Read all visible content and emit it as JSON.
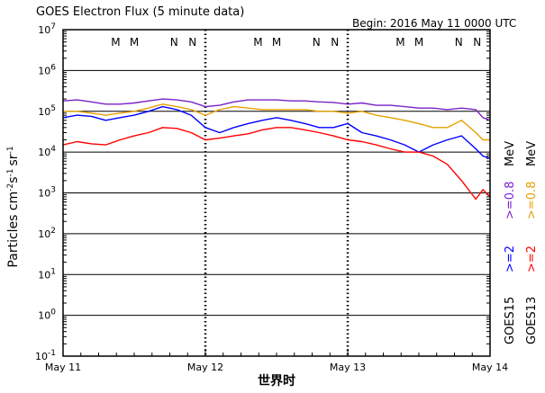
{
  "chart_data": {
    "type": "line",
    "title": "GOES Electron Flux (5 minute data)",
    "begin_label": "Begin: 2016 May 11 0000 UTC",
    "ylabel": "Particles cm",
    "ylabel_sup": "-2",
    "ylabel_unit": "s",
    "ylabel_unit_sup": "-1",
    "ylabel_tail": "sr",
    "ylabel_tail_sup": "-1",
    "xlabel": "世界时",
    "y_scale": "log",
    "ylim": [
      0.1,
      10000000
    ],
    "y_tick_exponents": [
      "7",
      "6",
      "5",
      "4",
      "3",
      "2",
      "1",
      "0",
      "-1"
    ],
    "x_ticks": [
      "May 11",
      "May 12",
      "May 13",
      "May 14"
    ],
    "x_range_days": [
      0,
      3
    ],
    "grid": "horizontal major decades",
    "threshold_line": 1000,
    "noon_midnight_markers": [
      {
        "label": "M",
        "color": "#ff0000",
        "x": 0.37
      },
      {
        "label": "M",
        "color": "#0000ff",
        "x": 0.5
      },
      {
        "label": "N",
        "color": "#ff0000",
        "x": 0.78
      },
      {
        "label": "N",
        "color": "#0000ff",
        "x": 0.91
      },
      {
        "label": "M",
        "color": "#ff0000",
        "x": 1.37
      },
      {
        "label": "M",
        "color": "#0000ff",
        "x": 1.5
      },
      {
        "label": "N",
        "color": "#ff0000",
        "x": 1.78
      },
      {
        "label": "N",
        "color": "#0000ff",
        "x": 1.91
      },
      {
        "label": "M",
        "color": "#ff0000",
        "x": 2.37
      },
      {
        "label": "M",
        "color": "#0000ff",
        "x": 2.5
      },
      {
        "label": "N",
        "color": "#ff0000",
        "x": 2.78
      },
      {
        "label": "N",
        "color": "#0000ff",
        "x": 2.91
      }
    ],
    "legend": {
      "goes15": "GOES15",
      "goes13": "GOES13",
      "blue_label": ">=2",
      "red_label": ">=2",
      "purple_label": ">=0.8",
      "orange_label": ">=0.8",
      "unit": "MeV"
    },
    "series": [
      {
        "name": ">=0.8 MeV",
        "satellite": "GOES15",
        "color": "#7a22c8",
        "x": [
          0,
          0.1,
          0.2,
          0.3,
          0.4,
          0.5,
          0.6,
          0.7,
          0.8,
          0.9,
          1.0,
          1.1,
          1.2,
          1.3,
          1.4,
          1.5,
          1.6,
          1.7,
          1.8,
          1.9,
          2.0,
          2.1,
          2.2,
          2.3,
          2.4,
          2.5,
          2.6,
          2.7,
          2.8,
          2.9,
          2.95,
          3.0
        ],
        "values": [
          180000,
          190000,
          170000,
          150000,
          150000,
          160000,
          180000,
          200000,
          190000,
          170000,
          130000,
          140000,
          170000,
          190000,
          190000,
          190000,
          180000,
          180000,
          170000,
          165000,
          150000,
          160000,
          140000,
          140000,
          130000,
          120000,
          120000,
          110000,
          120000,
          110000,
          70000,
          60000
        ]
      },
      {
        "name": ">=0.8 MeV",
        "satellite": "GOES13",
        "color": "#e6a000",
        "x": [
          0,
          0.1,
          0.2,
          0.3,
          0.4,
          0.5,
          0.6,
          0.7,
          0.8,
          0.9,
          1.0,
          1.1,
          1.2,
          1.3,
          1.4,
          1.5,
          1.6,
          1.7,
          1.8,
          1.9,
          2.0,
          2.1,
          2.2,
          2.3,
          2.4,
          2.5,
          2.6,
          2.7,
          2.8,
          2.9,
          2.95,
          3.0
        ],
        "values": [
          100000,
          100000,
          90000,
          80000,
          90000,
          100000,
          120000,
          150000,
          130000,
          110000,
          80000,
          110000,
          130000,
          120000,
          110000,
          110000,
          110000,
          110000,
          100000,
          100000,
          90000,
          100000,
          80000,
          70000,
          60000,
          50000,
          40000,
          40000,
          60000,
          30000,
          20000,
          20000
        ]
      },
      {
        "name": ">=2 MeV",
        "satellite": "GOES15",
        "color": "#0000ff",
        "x": [
          0,
          0.1,
          0.2,
          0.3,
          0.4,
          0.5,
          0.6,
          0.7,
          0.8,
          0.9,
          1.0,
          1.1,
          1.2,
          1.3,
          1.4,
          1.5,
          1.6,
          1.7,
          1.8,
          1.9,
          2.0,
          2.1,
          2.2,
          2.3,
          2.4,
          2.5,
          2.6,
          2.7,
          2.8,
          2.9,
          2.95,
          3.0
        ],
        "values": [
          70000,
          80000,
          75000,
          60000,
          70000,
          80000,
          100000,
          130000,
          110000,
          80000,
          40000,
          30000,
          40000,
          50000,
          60000,
          70000,
          60000,
          50000,
          40000,
          40000,
          50000,
          30000,
          25000,
          20000,
          15000,
          10000,
          15000,
          20000,
          25000,
          12000,
          8000,
          7000
        ]
      },
      {
        "name": ">=2 MeV",
        "satellite": "GOES13",
        "color": "#ff0000",
        "x": [
          0,
          0.1,
          0.2,
          0.3,
          0.4,
          0.5,
          0.6,
          0.7,
          0.8,
          0.9,
          1.0,
          1.1,
          1.2,
          1.3,
          1.4,
          1.5,
          1.6,
          1.7,
          1.8,
          1.9,
          2.0,
          2.1,
          2.2,
          2.3,
          2.4,
          2.5,
          2.6,
          2.7,
          2.8,
          2.9,
          2.95,
          3.0
        ],
        "values": [
          15000,
          18000,
          16000,
          15000,
          20000,
          25000,
          30000,
          40000,
          38000,
          30000,
          20000,
          22000,
          25000,
          28000,
          35000,
          40000,
          40000,
          35000,
          30000,
          25000,
          20000,
          18000,
          15000,
          12000,
          10000,
          10000,
          8000,
          5000,
          2000,
          700,
          1200,
          800
        ]
      }
    ]
  }
}
